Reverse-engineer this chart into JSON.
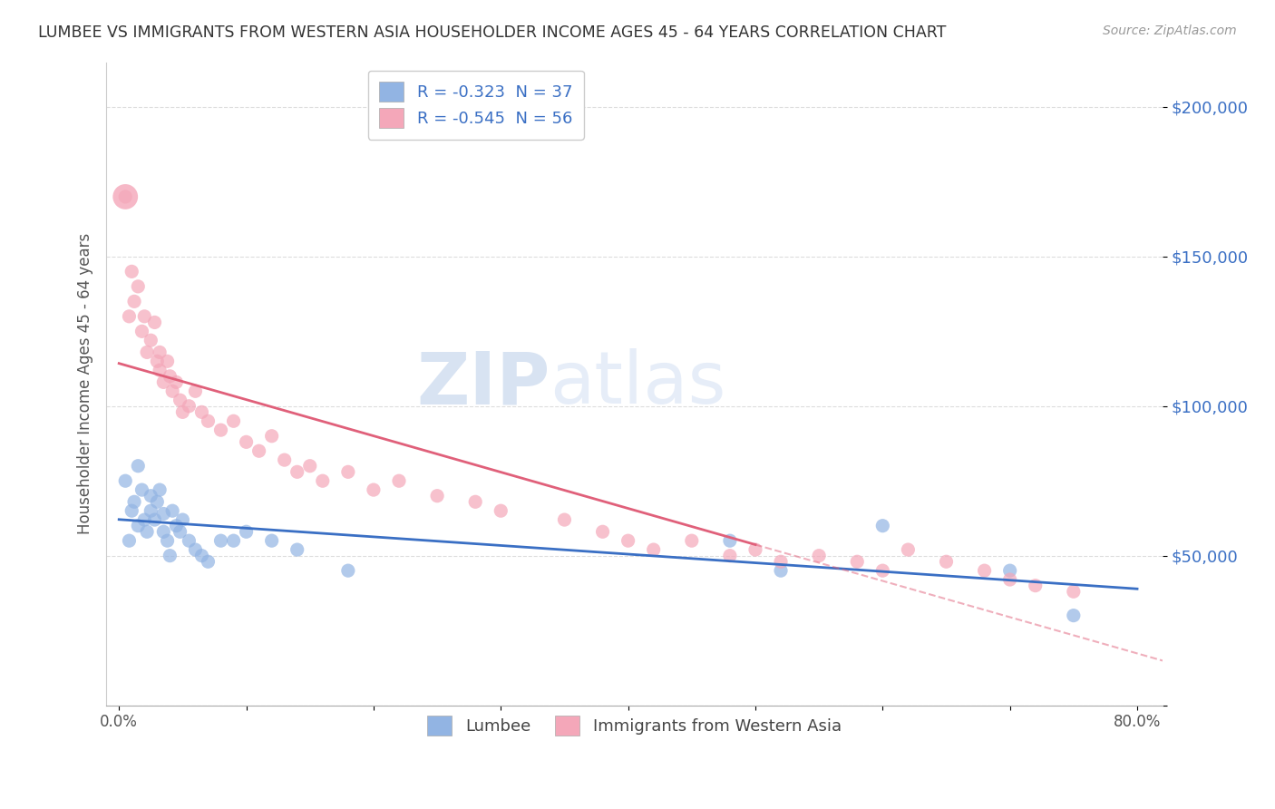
{
  "title": "LUMBEE VS IMMIGRANTS FROM WESTERN ASIA HOUSEHOLDER INCOME AGES 45 - 64 YEARS CORRELATION CHART",
  "source": "Source: ZipAtlas.com",
  "ylabel": "Householder Income Ages 45 - 64 years",
  "xlabel_lumbee": "Lumbee",
  "xlabel_western": "Immigrants from Western Asia",
  "xlim": [
    -0.01,
    0.82
  ],
  "ylim": [
    0,
    215000
  ],
  "yticks": [
    0,
    50000,
    100000,
    150000,
    200000
  ],
  "legend_r1": "-0.323",
  "legend_n1": "37",
  "legend_r2": "-0.545",
  "legend_n2": "56",
  "blue_color": "#92b4e3",
  "pink_color": "#f4a7b9",
  "blue_line_color": "#3a6fc4",
  "pink_line_color": "#e0607a",
  "text_color": "#3a6fc4",
  "watermark_color": "#c5d8f0",
  "background_color": "#ffffff",
  "grid_color": "#dddddd",
  "lumbee_x": [
    0.005,
    0.008,
    0.01,
    0.012,
    0.015,
    0.015,
    0.018,
    0.02,
    0.022,
    0.025,
    0.025,
    0.028,
    0.03,
    0.032,
    0.035,
    0.035,
    0.038,
    0.04,
    0.042,
    0.045,
    0.048,
    0.05,
    0.055,
    0.06,
    0.065,
    0.07,
    0.08,
    0.09,
    0.1,
    0.12,
    0.14,
    0.18,
    0.48,
    0.52,
    0.6,
    0.7,
    0.75
  ],
  "lumbee_y": [
    75000,
    55000,
    65000,
    68000,
    80000,
    60000,
    72000,
    62000,
    58000,
    65000,
    70000,
    62000,
    68000,
    72000,
    64000,
    58000,
    55000,
    50000,
    65000,
    60000,
    58000,
    62000,
    55000,
    52000,
    50000,
    48000,
    55000,
    55000,
    58000,
    55000,
    52000,
    45000,
    55000,
    45000,
    60000,
    45000,
    30000
  ],
  "western_x": [
    0.005,
    0.008,
    0.01,
    0.012,
    0.015,
    0.018,
    0.02,
    0.022,
    0.025,
    0.028,
    0.03,
    0.032,
    0.032,
    0.035,
    0.038,
    0.04,
    0.042,
    0.045,
    0.048,
    0.05,
    0.055,
    0.06,
    0.065,
    0.07,
    0.08,
    0.09,
    0.1,
    0.11,
    0.12,
    0.13,
    0.14,
    0.15,
    0.16,
    0.18,
    0.2,
    0.22,
    0.25,
    0.28,
    0.3,
    0.35,
    0.38,
    0.4,
    0.42,
    0.45,
    0.48,
    0.5,
    0.52,
    0.55,
    0.58,
    0.6,
    0.62,
    0.65,
    0.68,
    0.7,
    0.72,
    0.75
  ],
  "western_y": [
    170000,
    130000,
    145000,
    135000,
    140000,
    125000,
    130000,
    118000,
    122000,
    128000,
    115000,
    118000,
    112000,
    108000,
    115000,
    110000,
    105000,
    108000,
    102000,
    98000,
    100000,
    105000,
    98000,
    95000,
    92000,
    95000,
    88000,
    85000,
    90000,
    82000,
    78000,
    80000,
    75000,
    78000,
    72000,
    75000,
    70000,
    68000,
    65000,
    62000,
    58000,
    55000,
    52000,
    55000,
    50000,
    52000,
    48000,
    50000,
    48000,
    45000,
    52000,
    48000,
    45000,
    42000,
    40000,
    38000
  ]
}
